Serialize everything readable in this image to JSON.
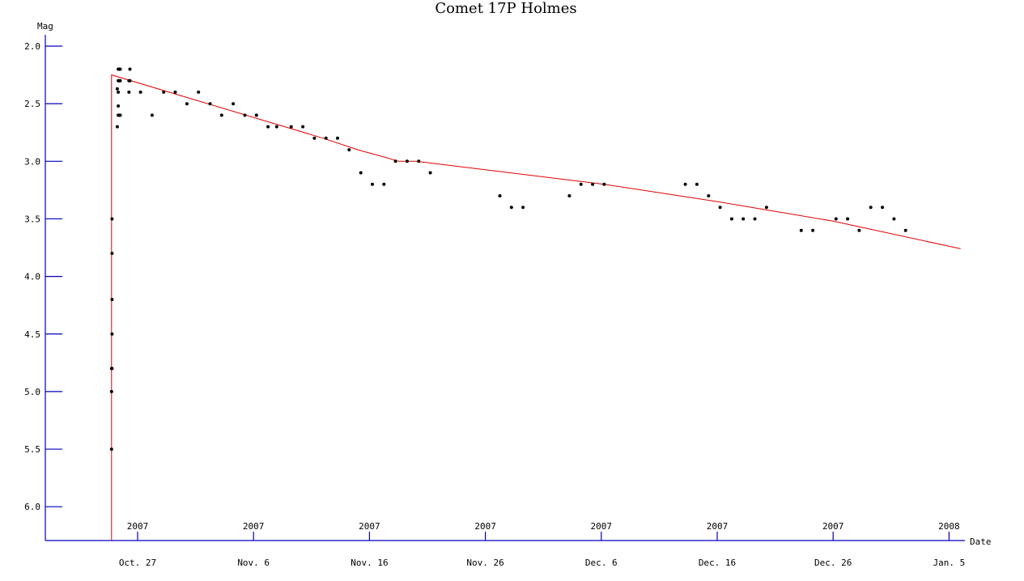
{
  "chart_data": {
    "type": "scatter",
    "title": "Comet 17P Holmes",
    "ylabel": "Mag",
    "xlabel": "Date",
    "y_inverted": true,
    "ylim": [
      2.0,
      6.0
    ],
    "xlim": [
      "2007-10-24",
      "2008-01-06"
    ],
    "grid": false,
    "y_ticks": [
      "2.0",
      "2.5",
      "3.0",
      "3.5",
      "4.0",
      "4.5",
      "5.0",
      "5.5",
      "6.0"
    ],
    "x_ticks": [
      {
        "date": "2007-10-27",
        "year": "2007",
        "label": "Oct. 27"
      },
      {
        "date": "2007-11-06",
        "year": "2007",
        "label": "Nov. 6"
      },
      {
        "date": "2007-11-16",
        "year": "2007",
        "label": "Nov. 16"
      },
      {
        "date": "2007-11-26",
        "year": "2007",
        "label": "Nov. 26"
      },
      {
        "date": "2007-12-06",
        "year": "2007",
        "label": "Dec. 6"
      },
      {
        "date": "2007-12-16",
        "year": "2007",
        "label": "Dec. 16"
      },
      {
        "date": "2007-12-26",
        "year": "2007",
        "label": "Dec. 26"
      },
      {
        "date": "2008-01-05",
        "year": "2008",
        "label": "Jan. 5"
      }
    ],
    "observations": [
      [
        "2007-10-24 18:00",
        5.5
      ],
      [
        "2007-10-24 18:00",
        5.0
      ],
      [
        "2007-10-24 18:00",
        4.8
      ],
      [
        "2007-10-24 19:00",
        4.8
      ],
      [
        "2007-10-24 19:00",
        4.5
      ],
      [
        "2007-10-24 19:00",
        4.2
      ],
      [
        "2007-10-24 19:00",
        3.8
      ],
      [
        "2007-10-24 19:00",
        3.5
      ],
      [
        "2007-10-25 06:00",
        2.7
      ],
      [
        "2007-10-25 06:00",
        2.37
      ],
      [
        "2007-10-25 08:00",
        2.6
      ],
      [
        "2007-10-25 08:00",
        2.52
      ],
      [
        "2007-10-25 08:00",
        2.3
      ],
      [
        "2007-10-25 08:00",
        2.2
      ],
      [
        "2007-10-25 08:00",
        2.4
      ],
      [
        "2007-10-25 10:00",
        2.6
      ],
      [
        "2007-10-25 10:00",
        2.3
      ],
      [
        "2007-10-25 10:00",
        2.2
      ],
      [
        "2007-10-25 12:00",
        2.2
      ],
      [
        "2007-10-25 12:00",
        2.3
      ],
      [
        "2007-10-25 12:00",
        2.6
      ],
      [
        "2007-10-26 06:00",
        2.4
      ],
      [
        "2007-10-26 06:00",
        2.3
      ],
      [
        "2007-10-26 08:00",
        2.2
      ],
      [
        "2007-10-26 08:00",
        2.3
      ],
      [
        "2007-10-27 06:00",
        2.4
      ],
      [
        "2007-10-28 06:00",
        2.6
      ],
      [
        "2007-10-29 06:00",
        2.4
      ],
      [
        "2007-10-30 06:00",
        2.4
      ],
      [
        "2007-10-31 06:00",
        2.5
      ],
      [
        "2007-11-01 06:00",
        2.4
      ],
      [
        "2007-11-02 06:00",
        2.5
      ],
      [
        "2007-11-03 06:00",
        2.6
      ],
      [
        "2007-11-04 06:00",
        2.5
      ],
      [
        "2007-11-05 06:00",
        2.6
      ],
      [
        "2007-11-06 06:00",
        2.6
      ],
      [
        "2007-11-07 06:00",
        2.7
      ],
      [
        "2007-11-08 00:00",
        2.7
      ],
      [
        "2007-11-09 06:00",
        2.7
      ],
      [
        "2007-11-10 06:00",
        2.7
      ],
      [
        "2007-11-11 06:00",
        2.8
      ],
      [
        "2007-11-12 06:00",
        2.8
      ],
      [
        "2007-11-13 06:00",
        2.8
      ],
      [
        "2007-11-14 06:00",
        2.9
      ],
      [
        "2007-11-15 06:00",
        3.1
      ],
      [
        "2007-11-16 06:00",
        3.2
      ],
      [
        "2007-11-17 06:00",
        3.2
      ],
      [
        "2007-11-18 06:00",
        3.0
      ],
      [
        "2007-11-19 06:00",
        3.0
      ],
      [
        "2007-11-20 06:00",
        3.0
      ],
      [
        "2007-11-21 06:00",
        3.1
      ],
      [
        "2007-11-27 06:00",
        3.3
      ],
      [
        "2007-11-28 06:00",
        3.4
      ],
      [
        "2007-11-29 06:00",
        3.4
      ],
      [
        "2007-12-03 06:00",
        3.3
      ],
      [
        "2007-12-04 06:00",
        3.2
      ],
      [
        "2007-12-05 06:00",
        3.2
      ],
      [
        "2007-12-06 06:00",
        3.2
      ],
      [
        "2007-12-13 06:00",
        3.2
      ],
      [
        "2007-12-14 06:00",
        3.2
      ],
      [
        "2007-12-15 06:00",
        3.3
      ],
      [
        "2007-12-16 06:00",
        3.4
      ],
      [
        "2007-12-17 06:00",
        3.5
      ],
      [
        "2007-12-18 06:00",
        3.5
      ],
      [
        "2007-12-19 06:00",
        3.5
      ],
      [
        "2007-12-20 06:00",
        3.4
      ],
      [
        "2007-12-23 06:00",
        3.6
      ],
      [
        "2007-12-24 06:00",
        3.6
      ],
      [
        "2007-12-26 06:00",
        3.5
      ],
      [
        "2007-12-27 06:00",
        3.5
      ],
      [
        "2007-12-28 06:00",
        3.6
      ],
      [
        "2007-12-29 06:00",
        3.4
      ],
      [
        "2007-12-30 06:00",
        3.4
      ],
      [
        "2007-12-31 06:00",
        3.5
      ],
      [
        "2008-01-01 06:00",
        3.6
      ]
    ],
    "trend_line": [
      [
        "2007-10-24 18:00",
        6.3
      ],
      [
        "2007-10-24 18:00",
        2.25
      ],
      [
        "2007-11-12 00:00",
        2.8
      ],
      [
        "2007-11-15 00:00",
        2.9
      ],
      [
        "2007-11-17 12:00",
        2.97
      ],
      [
        "2007-11-18 12:00",
        3.0
      ],
      [
        "2007-11-20 00:00",
        3.0
      ],
      [
        "2007-12-06 06:00",
        3.2
      ],
      [
        "2007-12-16 00:00",
        3.35
      ],
      [
        "2007-12-26 00:00",
        3.52
      ],
      [
        "2008-01-06 00:00",
        3.76
      ]
    ],
    "colors": {
      "axis": "#0000c0",
      "points": "#000000",
      "trend": "#e00000"
    }
  }
}
